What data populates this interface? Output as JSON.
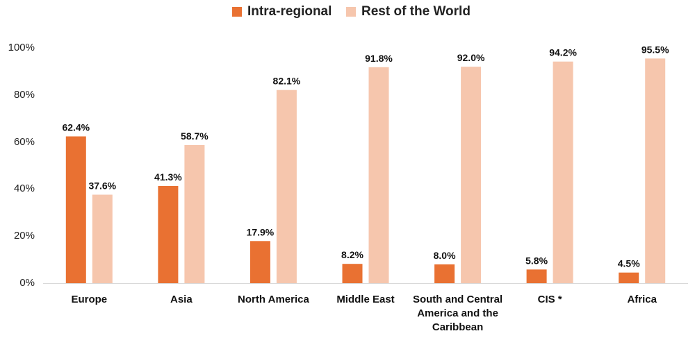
{
  "chart_data": {
    "type": "bar",
    "title": "",
    "xlabel": "",
    "ylabel": "",
    "ylim": [
      0,
      100
    ],
    "yticks": [
      "0%",
      "20%",
      "40%",
      "60%",
      "80%",
      "100%"
    ],
    "categories": [
      "Europe",
      "Asia",
      "North America",
      "Middle East",
      "South and Central America and the Caribbean",
      "CIS *",
      "Africa"
    ],
    "series": [
      {
        "name": "Intra-regional",
        "color": "#E97132",
        "values": [
          62.4,
          41.3,
          17.9,
          8.2,
          8.0,
          5.8,
          4.5
        ],
        "labels": [
          "62.4%",
          "41.3%",
          "17.9%",
          "8.2%",
          "8.0%",
          "5.8%",
          "4.5%"
        ]
      },
      {
        "name": "Rest of the World",
        "color": "#F6C6AD",
        "values": [
          37.6,
          58.7,
          82.1,
          91.8,
          92.0,
          94.2,
          95.5
        ],
        "labels": [
          "37.6%",
          "58.7%",
          "82.1%",
          "91.8%",
          "92.0%",
          "94.2%",
          "95.5%"
        ]
      }
    ],
    "legend_position": "top-center",
    "grid": false
  }
}
